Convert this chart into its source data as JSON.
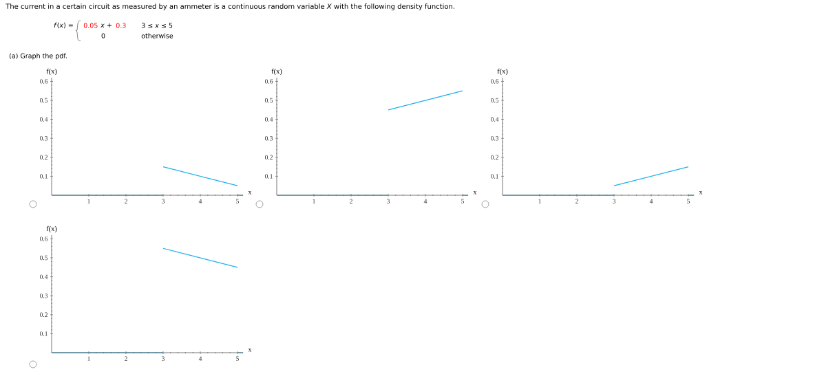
{
  "chart_data": [
    {
      "type": "line",
      "title": "The current in a certain circuit as measured by an ammeter is a continuous random variable *X* with the following density function.",
      "annotations": [
        "*f*(*x*) =",
        "0.05",
        "*x* +",
        "0.3",
        "3 ≤ *x* ≤ 5",
        "0",
        "otherwise",
        "(a)  Graph the pdf."
      ],
      "xlabel": "x",
      "ylabel": "f(x)",
      "xlim": [
        0,
        5.15
      ],
      "ylim": [
        0,
        0.62
      ],
      "xticks": [
        1,
        2,
        3,
        4,
        5
      ],
      "yticks": [
        0.1,
        0.2,
        0.3,
        0.4,
        0.5,
        0.6
      ],
      "marker": "none",
      "line_style": "solid",
      "series": [
        {
          "color": "#1cb0ea",
          "x": [
            3,
            5
          ],
          "values": [
            0.15,
            0.05
          ]
        },
        {
          "color": "#2b7896",
          "x": [
            0,
            3,
            4,
            5,
            5.15
          ],
          "values": [
            0,
            0,
            null,
            0,
            0
          ]
        }
      ]
    },
    {
      "type": "line",
      "xlabel": "x",
      "ylabel": "f(x)",
      "xlim": [
        0,
        5.15
      ],
      "ylim": [
        0,
        0.62
      ],
      "xticks": [
        1,
        2,
        3,
        4,
        5
      ],
      "yticks": [
        0.1,
        0.2,
        0.3,
        0.4,
        0.5,
        0.6
      ],
      "marker": "none",
      "line_style": "solid",
      "series": [
        {
          "color": "#1cb0ea",
          "x": [
            3,
            5
          ],
          "values": [
            0.45,
            0.55
          ]
        },
        {
          "color": "#2b7896",
          "x": [
            0,
            3,
            4,
            5,
            5.15
          ],
          "values": [
            0,
            0,
            null,
            0,
            0
          ]
        }
      ]
    },
    {
      "type": "line",
      "xlabel": "x",
      "ylabel": "f(x)",
      "xlim": [
        0,
        5.15
      ],
      "ylim": [
        0,
        0.62
      ],
      "xticks": [
        1,
        2,
        3,
        4,
        5
      ],
      "yticks": [
        0.1,
        0.2,
        0.3,
        0.4,
        0.5,
        0.6
      ],
      "marker": "none",
      "line_style": "solid",
      "series": [
        {
          "color": "#1cb0ea",
          "x": [
            3,
            5
          ],
          "values": [
            0.05,
            0.15
          ]
        },
        {
          "color": "#2b7896",
          "x": [
            0,
            3,
            4,
            5,
            5.15
          ],
          "values": [
            0,
            0,
            null,
            0,
            0
          ]
        }
      ]
    },
    {
      "type": "line",
      "xlabel": "x",
      "ylabel": "f(x)",
      "xlim": [
        0,
        5.15
      ],
      "ylim": [
        0,
        0.62
      ],
      "xticks": [
        1,
        2,
        3,
        4,
        5
      ],
      "yticks": [
        0.1,
        0.2,
        0.3,
        0.4,
        0.5,
        0.6
      ],
      "marker": "none",
      "line_style": "solid",
      "series": [
        {
          "color": "#1cb0ea",
          "x": [
            3,
            5
          ],
          "values": [
            0.55,
            0.45
          ]
        },
        {
          "color": "#2b7896",
          "x": [
            0,
            3,
            4,
            5,
            5.15
          ],
          "values": [
            0,
            0,
            null,
            0,
            0
          ]
        }
      ]
    }
  ]
}
